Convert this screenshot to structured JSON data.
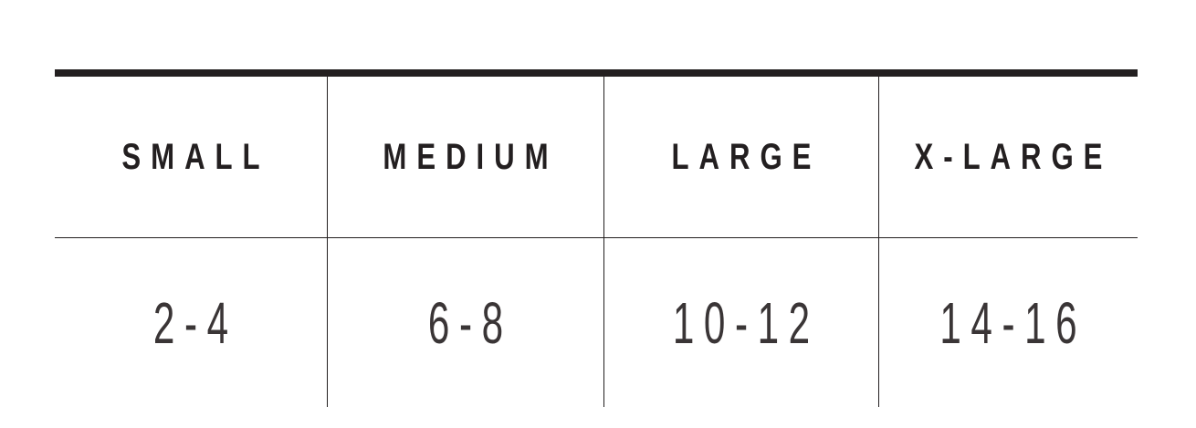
{
  "table": {
    "headers": [
      "SMALL",
      "MEDIUM",
      "LARGE",
      "X-LARGE"
    ],
    "values": [
      "2-4",
      "6-8",
      "10-12",
      "14-16"
    ]
  },
  "colors": {
    "text": "#231f20",
    "rule": "#231f20",
    "background": "#ffffff"
  }
}
